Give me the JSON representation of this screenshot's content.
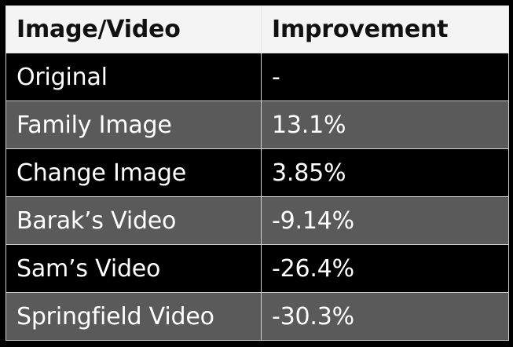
{
  "table": {
    "headers": [
      "Image/Video",
      "Improvement"
    ],
    "rows": [
      {
        "name": "Original",
        "improvement": "-"
      },
      {
        "name": "Family Image",
        "improvement": "13.1%"
      },
      {
        "name": "Change Image",
        "improvement": "3.85%"
      },
      {
        "name": "Barak’s Video",
        "improvement": "-9.14%"
      },
      {
        "name": "Sam’s Video",
        "improvement": "-26.4%"
      },
      {
        "name": "Springfield Video",
        "improvement": "-30.3%"
      }
    ]
  },
  "colors": {
    "header_bg": "#f4f4f4",
    "row_dark": "#000000",
    "row_light": "#5a5a5a",
    "text_light": "#ffffff",
    "text_dark": "#111111"
  }
}
